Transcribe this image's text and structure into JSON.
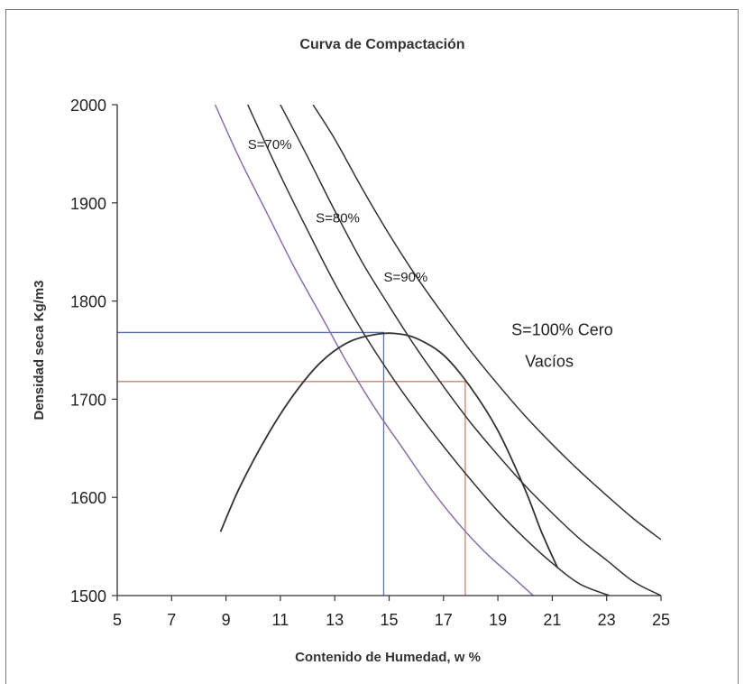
{
  "chart_data": {
    "type": "line",
    "title": "Curva de Compactación",
    "xlabel": "Contenido de Humedad, w %",
    "ylabel": "Densidad seca Kg/m3",
    "xlim": [
      5,
      25
    ],
    "ylim": [
      1500,
      2000
    ],
    "x_ticks": [
      "5",
      "7",
      "9",
      "11",
      "13",
      "15",
      "17",
      "19",
      "21",
      "23",
      "25"
    ],
    "y_ticks": [
      "1500",
      "1600",
      "1700",
      "1800",
      "1900",
      "2000"
    ],
    "grid": false,
    "colors": {
      "saturation": "#333333",
      "saturation_70": "#8a6fa8",
      "max_density_guide": "#5a6fb0",
      "field_guide": "#c9866a",
      "compaction_curve": "#333333"
    },
    "series": [
      {
        "name": "S=70%",
        "x": [
          8.6,
          9.5,
          10.5,
          11.5,
          12.5,
          13.5,
          14.5,
          15.5,
          16.5,
          17.5,
          18.5,
          19.5,
          20.3
        ],
        "y": [
          2000,
          1945,
          1890,
          1835,
          1785,
          1735,
          1690,
          1650,
          1610,
          1575,
          1545,
          1520,
          1500
        ]
      },
      {
        "name": "S=80%",
        "x": [
          9.8,
          11,
          12,
          13,
          14,
          15,
          16,
          17,
          18,
          19,
          20,
          21,
          22,
          23.1
        ],
        "y": [
          2000,
          1928,
          1872,
          1818,
          1770,
          1727,
          1688,
          1652,
          1618,
          1586,
          1558,
          1533,
          1512,
          1500
        ]
      },
      {
        "name": "S=90%",
        "x": [
          11,
          12,
          13,
          14,
          15,
          16,
          17,
          18,
          19,
          20,
          21,
          22,
          23,
          24,
          25
        ],
        "y": [
          2000,
          1947,
          1892,
          1840,
          1795,
          1752,
          1713,
          1676,
          1643,
          1612,
          1584,
          1558,
          1536,
          1514,
          1500
        ]
      },
      {
        "name": "S=100% Cero Vacíos",
        "x": [
          12.2,
          13,
          14,
          15,
          16,
          17,
          18,
          19,
          20,
          21,
          22,
          23,
          24,
          25
        ],
        "y": [
          2000,
          1965,
          1915,
          1868,
          1825,
          1786,
          1749,
          1715,
          1683,
          1654,
          1627,
          1602,
          1578,
          1557
        ]
      },
      {
        "name": "",
        "x": [
          8.8,
          9.5,
          10.5,
          11.5,
          12.5,
          13.5,
          14.5,
          15.2,
          16,
          17,
          18,
          19,
          20,
          20.6,
          21.2
        ],
        "y": [
          1565,
          1610,
          1662,
          1705,
          1738,
          1758,
          1766,
          1767,
          1762,
          1745,
          1712,
          1668,
          1608,
          1565,
          1528
        ]
      }
    ],
    "guides": [
      {
        "x": 14.8,
        "y": 1768
      },
      {
        "x": 17.8,
        "y": 1718
      }
    ],
    "annotations": [
      {
        "text": "S=70%",
        "x": 9.8,
        "y": 1955
      },
      {
        "text": "S=80%",
        "x": 12.3,
        "y": 1880
      },
      {
        "text": "S=90%",
        "x": 14.8,
        "y": 1820
      },
      {
        "text": "S=100% Cero",
        "x": 19.5,
        "y": 1765
      },
      {
        "text": "Vacíos",
        "x": 20,
        "y": 1733
      }
    ]
  }
}
